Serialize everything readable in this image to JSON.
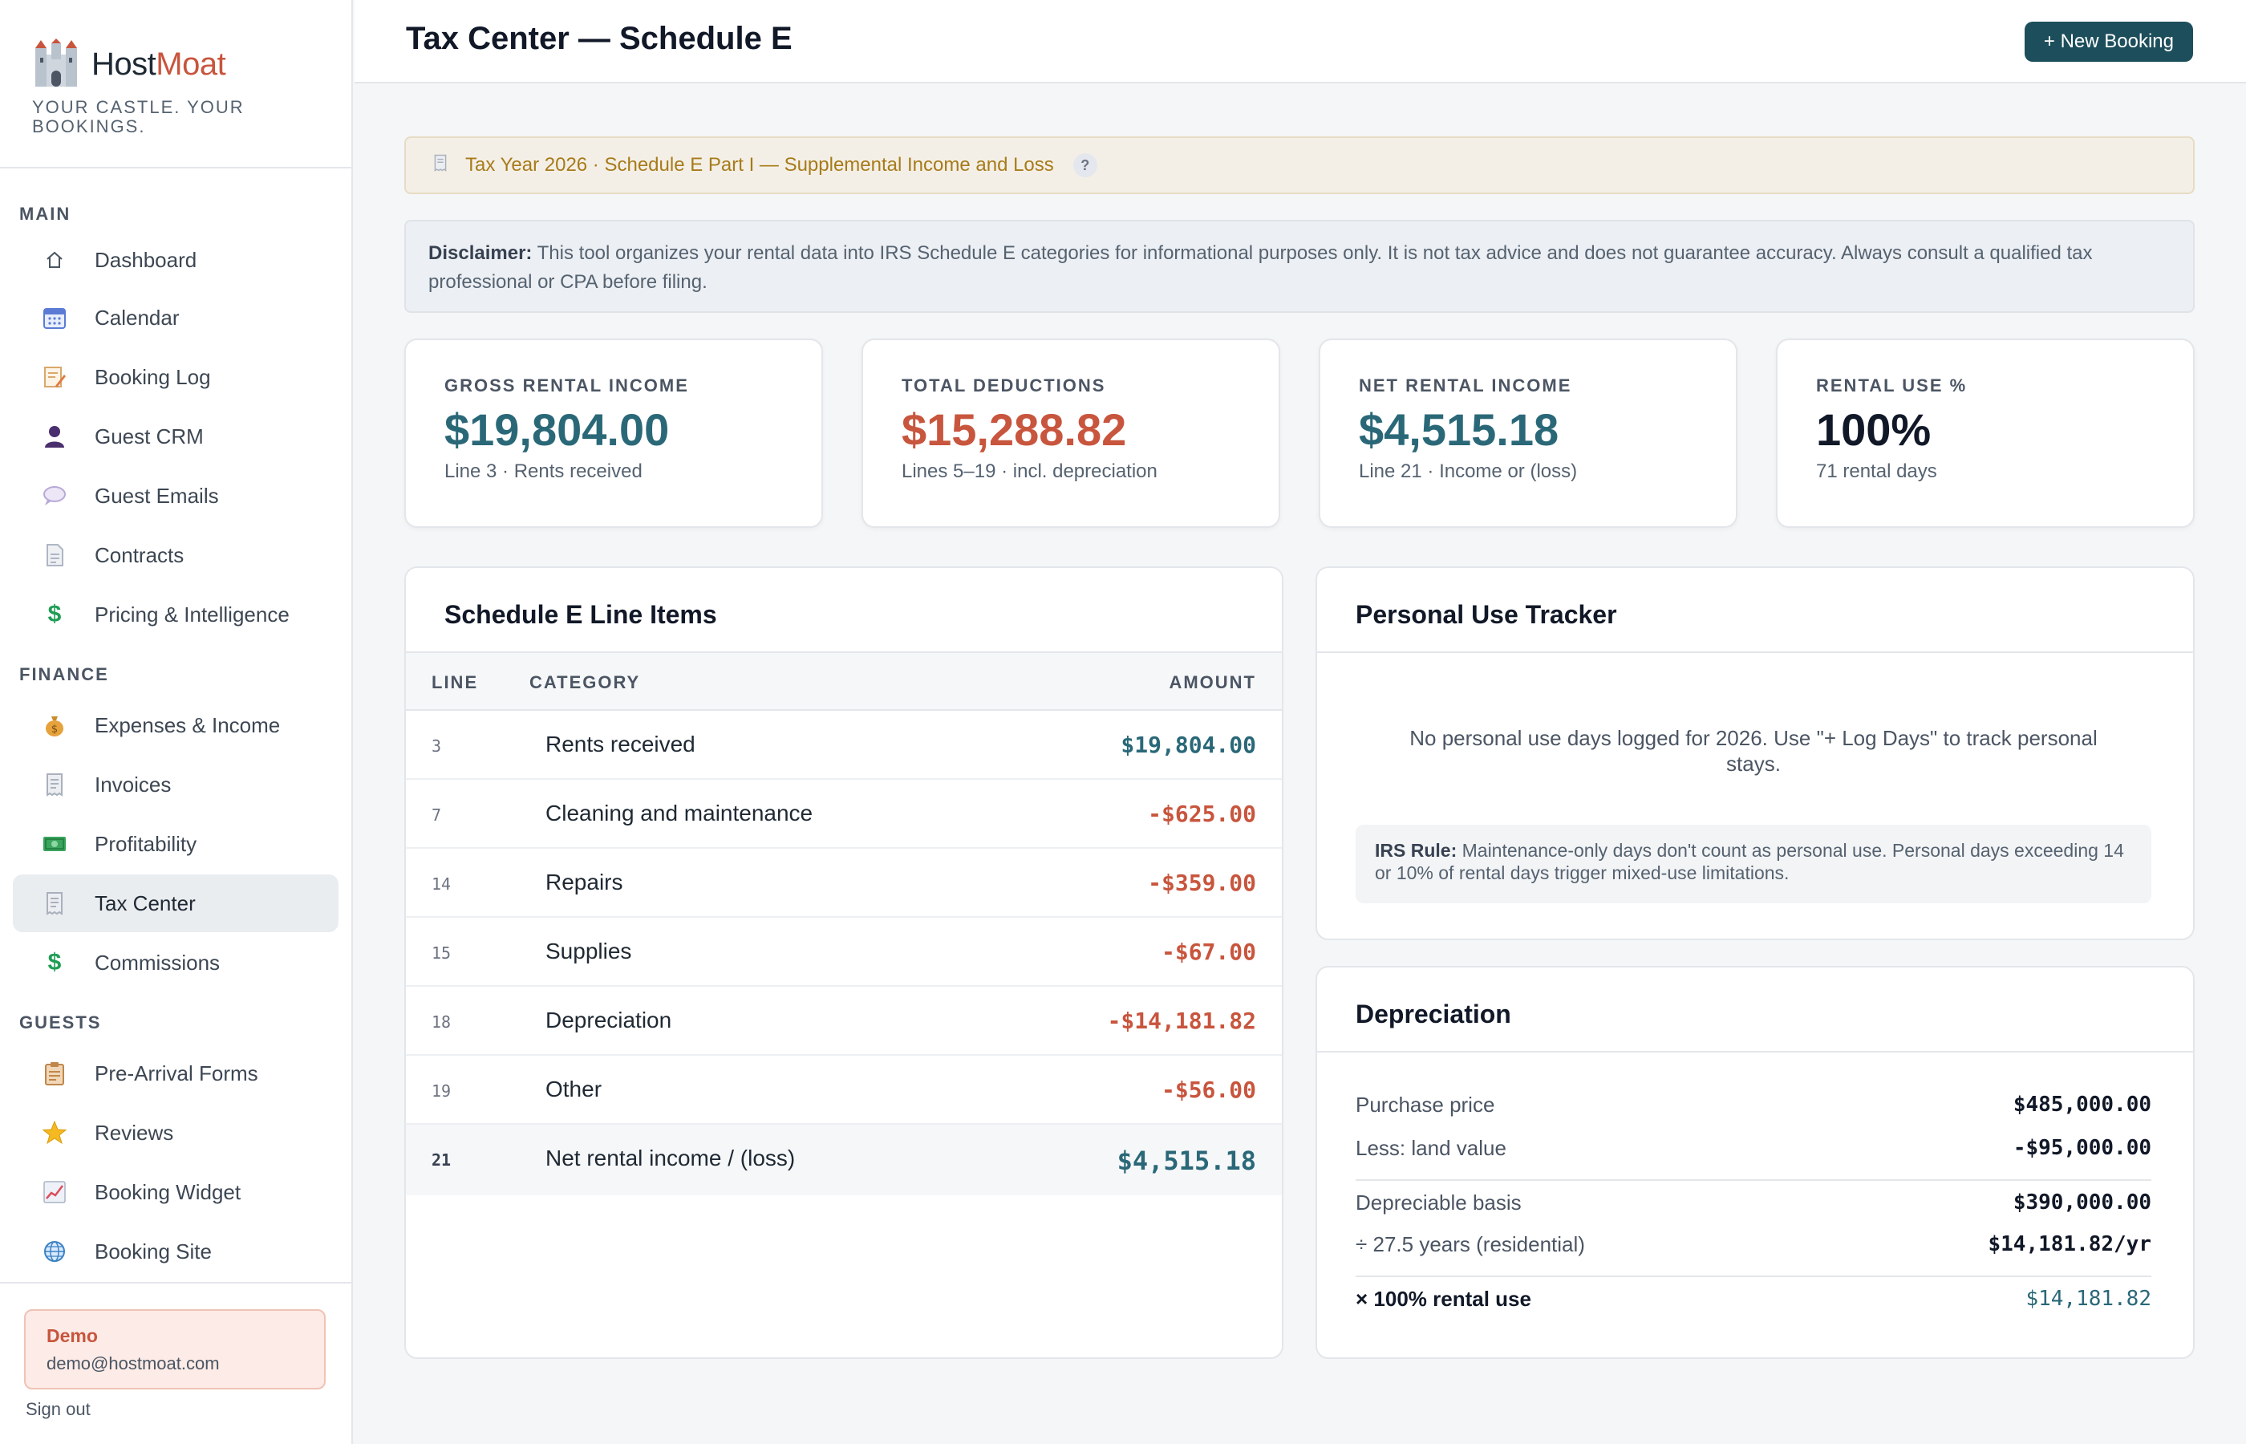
{
  "app": {
    "name_part1": "Host",
    "name_part2": "Moat",
    "tagline": "YOUR CASTLE. YOUR BOOKINGS."
  },
  "sidebar": {
    "sections": {
      "main": "MAIN",
      "finance": "FINANCE",
      "guests": "GUESTS"
    },
    "items": [
      {
        "label": "Dashboard",
        "icon": "home-icon"
      },
      {
        "label": "Calendar",
        "icon": "calendar-icon"
      },
      {
        "label": "Booking Log",
        "icon": "memo-icon"
      },
      {
        "label": "Guest CRM",
        "icon": "person-icon"
      },
      {
        "label": "Guest Emails",
        "icon": "speech-bubble-icon"
      },
      {
        "label": "Contracts",
        "icon": "document-icon"
      },
      {
        "label": "Pricing & Intelligence",
        "icon": "dollar-icon"
      },
      {
        "label": "Expenses & Income",
        "icon": "money-bag-icon"
      },
      {
        "label": "Invoices",
        "icon": "receipt-icon"
      },
      {
        "label": "Profitability",
        "icon": "banknote-icon"
      },
      {
        "label": "Tax Center",
        "icon": "receipt-icon",
        "active": true
      },
      {
        "label": "Commissions",
        "icon": "dollar-icon"
      },
      {
        "label": "Pre-Arrival Forms",
        "icon": "clipboard-icon"
      },
      {
        "label": "Reviews",
        "icon": "star-icon"
      },
      {
        "label": "Booking Widget",
        "icon": "chart-icon"
      },
      {
        "label": "Booking Site",
        "icon": "globe-icon"
      }
    ],
    "user": {
      "name": "Demo",
      "email": "demo@hostmoat.com"
    },
    "sign_out": "Sign out"
  },
  "header": {
    "title": "Tax Center — Schedule E",
    "new_booking": "+ New Booking"
  },
  "banner": {
    "text": "Tax Year 2026 · Schedule E Part I — Supplemental Income and Loss",
    "help": "?"
  },
  "disclaimer": {
    "label": "Disclaimer:",
    "text": "This tool organizes your rental data into IRS Schedule E categories for informational purposes only. It is not tax advice and does not guarantee accuracy. Always consult a qualified tax professional or CPA before filing."
  },
  "stats": [
    {
      "label": "GROSS RENTAL INCOME",
      "value": "$19,804.00",
      "sub": "Line 3 · Rents received",
      "color": "#2a6878"
    },
    {
      "label": "TOTAL DEDUCTIONS",
      "value": "$15,288.82",
      "sub": "Lines 5–19 · incl. depreciation",
      "color": "#c8553d"
    },
    {
      "label": "NET RENTAL INCOME",
      "value": "$4,515.18",
      "sub": "Line 21 · Income or (loss)",
      "color": "#2a6878"
    },
    {
      "label": "RENTAL USE %",
      "value": "100%",
      "sub": "71 rental days",
      "color": "#111827"
    }
  ],
  "line_items": {
    "title": "Schedule E Line Items",
    "columns": {
      "line": "LINE",
      "category": "CATEGORY",
      "amount": "AMOUNT"
    },
    "rows": [
      {
        "line": "3",
        "category": "Rents received",
        "amount": "$19,804.00",
        "color": "#2a6878"
      },
      {
        "line": "7",
        "category": "Cleaning and maintenance",
        "amount": "-$625.00",
        "color": "#c8553d"
      },
      {
        "line": "14",
        "category": "Repairs",
        "amount": "-$359.00",
        "color": "#c8553d"
      },
      {
        "line": "15",
        "category": "Supplies",
        "amount": "-$67.00",
        "color": "#c8553d"
      },
      {
        "line": "18",
        "category": "Depreciation",
        "amount": "-$14,181.82",
        "color": "#c8553d"
      },
      {
        "line": "19",
        "category": "Other",
        "amount": "-$56.00",
        "color": "#c8553d"
      }
    ],
    "total": {
      "line": "21",
      "category": "Net rental income / (loss)",
      "amount": "$4,515.18",
      "color": "#2a6878"
    }
  },
  "personal_use": {
    "title": "Personal Use Tracker",
    "empty": "No personal use days logged for 2026. Use \"+ Log Days\" to track personal stays.",
    "rule_label": "IRS Rule:",
    "rule_text": "Maintenance-only days don't count as personal use. Personal days exceeding 14 or 10% of rental days trigger mixed-use limitations."
  },
  "depreciation": {
    "title": "Depreciation",
    "purchase_label": "Purchase price",
    "purchase_value": "$485,000.00",
    "land_label": "Less: land value",
    "land_value": "-$95,000.00",
    "basis_label": "Depreciable basis",
    "basis_value": "$390,000.00",
    "years_label": "÷ 27.5 years (residential)",
    "years_value": "$14,181.82/yr",
    "use_label": "× 100% rental use",
    "use_value": "$14,181.82"
  }
}
